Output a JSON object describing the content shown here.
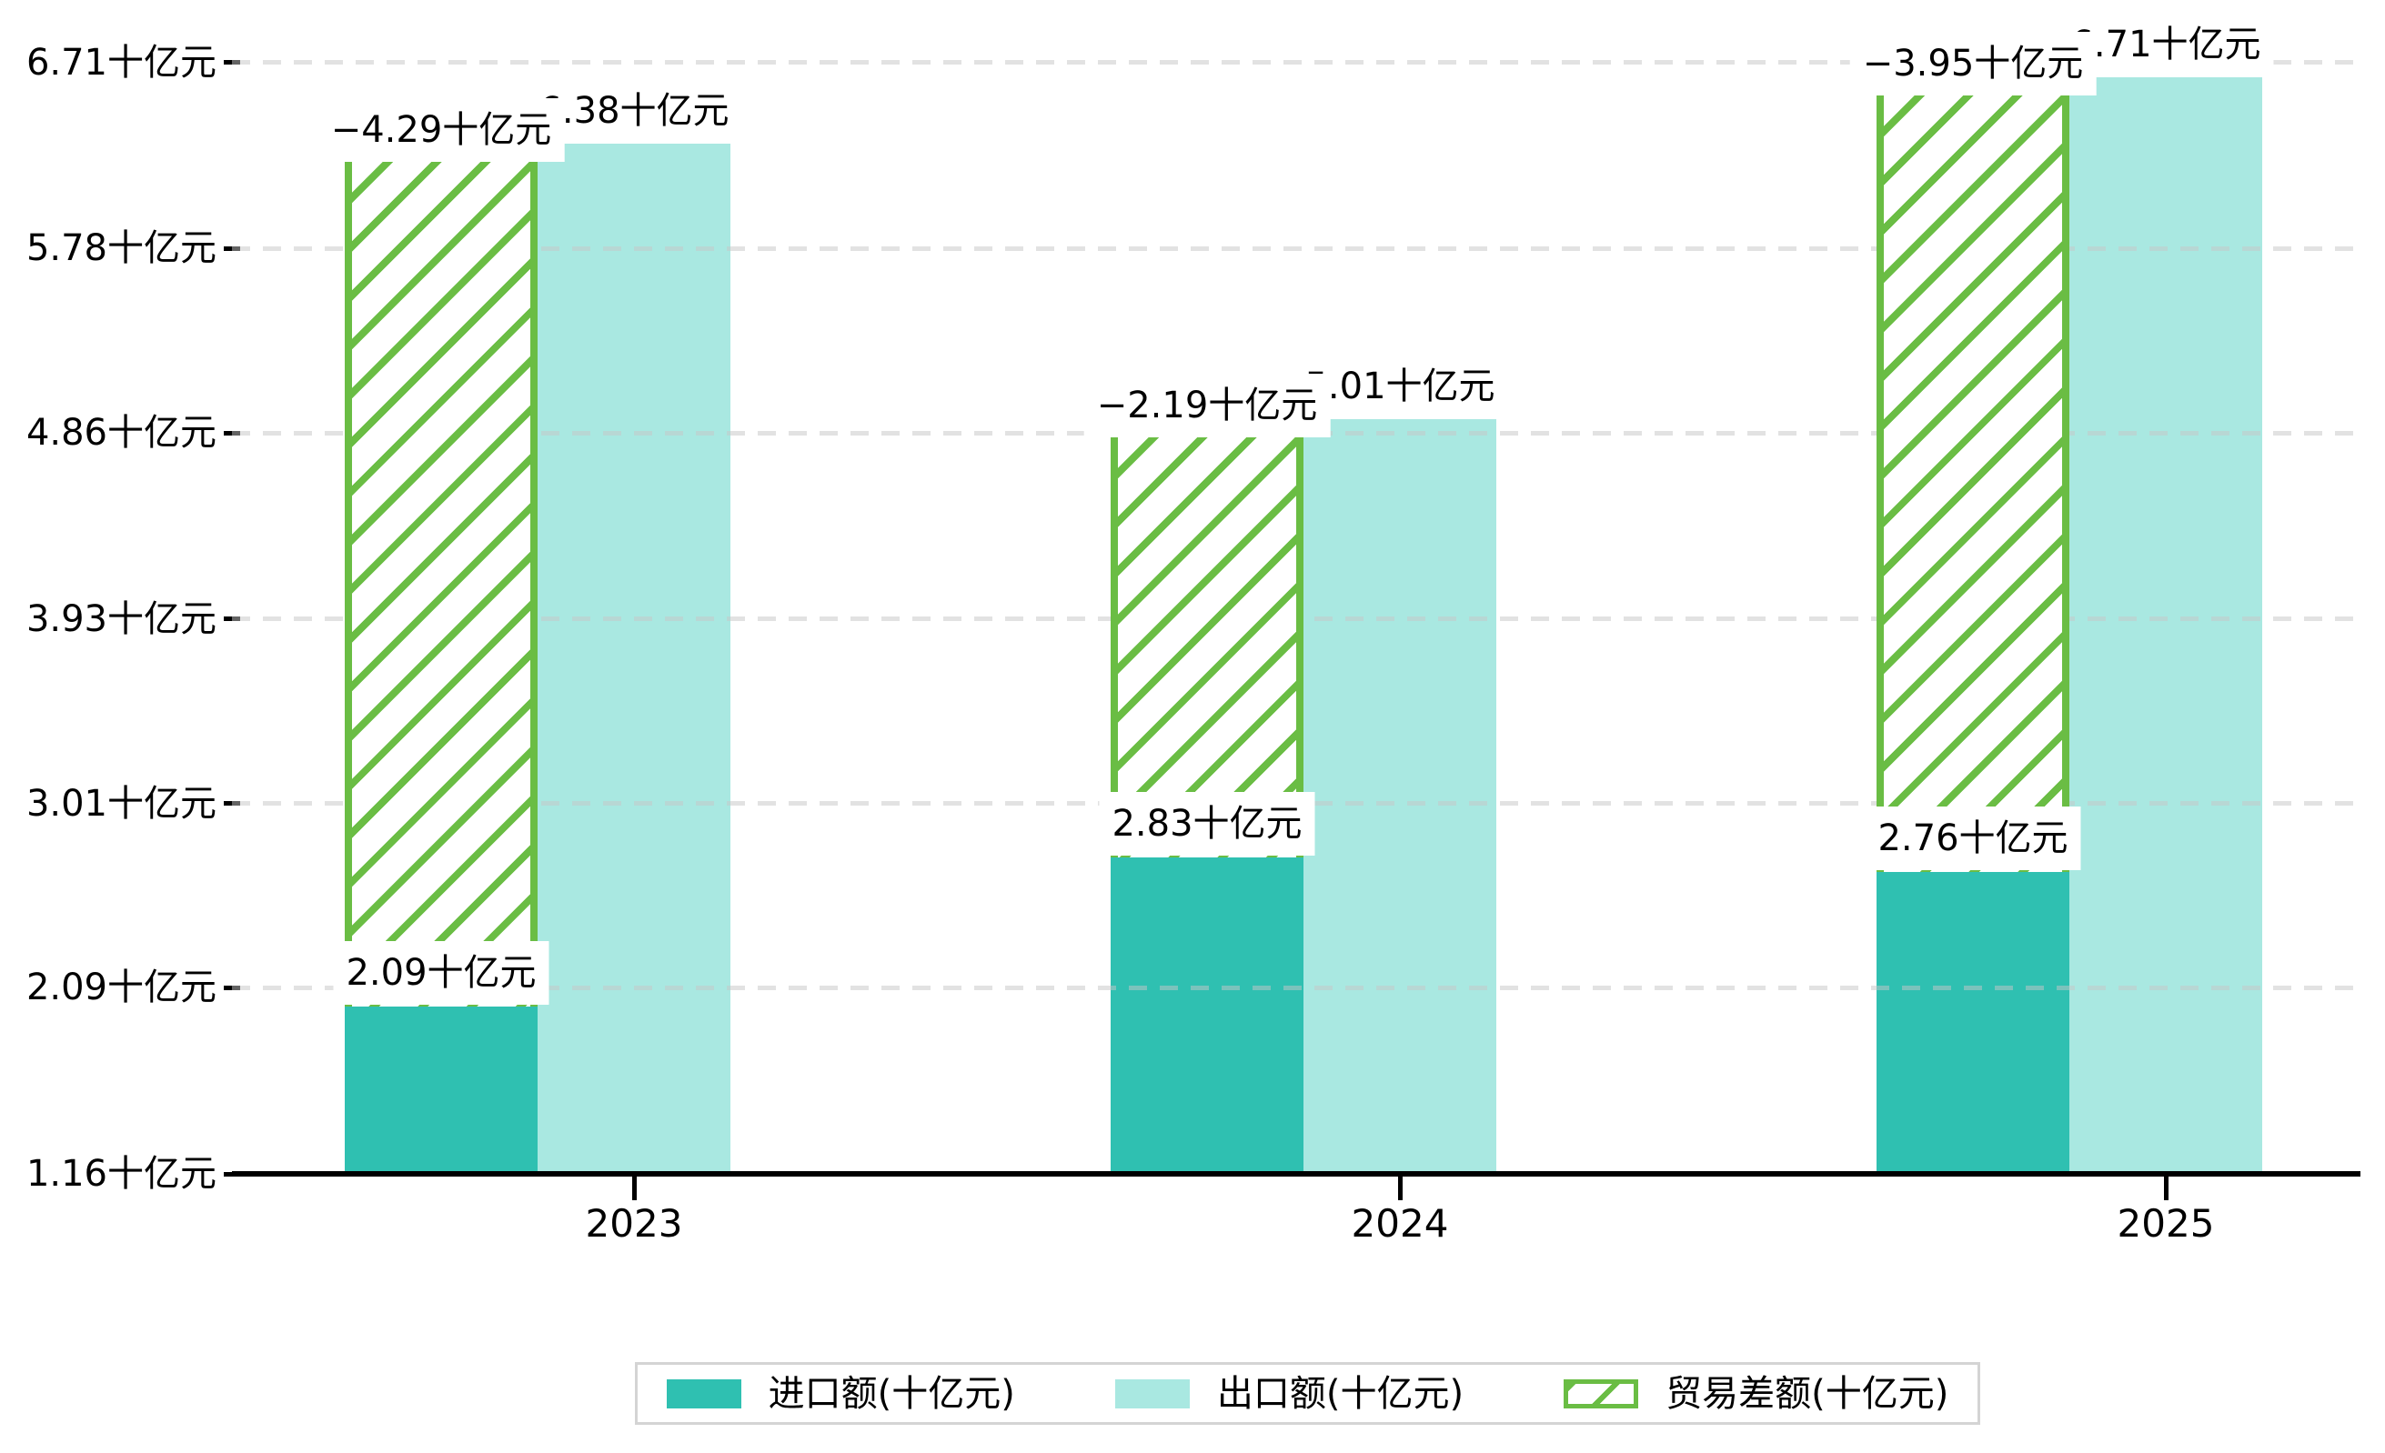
{
  "chart_data": {
    "type": "bar",
    "title": "",
    "unit": "十亿元",
    "categories": [
      "2023",
      "2024",
      "2025"
    ],
    "series": [
      {
        "key": "imports",
        "name": "进口额(十亿元)",
        "values": [
          2.09,
          2.83,
          2.76
        ],
        "labels": [
          "2.09十亿元",
          "2.83十亿元",
          "2.76十亿元"
        ],
        "color": "#2fc0b1",
        "style": "solid"
      },
      {
        "key": "exports",
        "name": "出口额(十亿元)",
        "values": [
          6.38,
          5.01,
          6.71
        ],
        "labels": [
          "6.38十亿元",
          "5.01十亿元",
          "6.71十亿元"
        ],
        "color": "#a9e8e1",
        "style": "solid"
      },
      {
        "key": "balance",
        "name": "贸易差额(十亿元)",
        "values": [
          -4.29,
          -2.19,
          -3.95
        ],
        "labels": [
          "−4.29十亿元",
          "−2.19十亿元",
          "−3.95十亿元"
        ],
        "color": "#6abd44",
        "style": "hatched",
        "note": "rendered as hatched span between import top and export top"
      }
    ],
    "y_ticks": [
      {
        "value": 6.71,
        "label": "6.71十亿元"
      },
      {
        "value": 5.78,
        "label": "5.78十亿元"
      },
      {
        "value": 4.86,
        "label": "4.86十亿元"
      },
      {
        "value": 3.93,
        "label": "3.93十亿元"
      },
      {
        "value": 3.01,
        "label": "3.01十亿元"
      },
      {
        "value": 2.09,
        "label": "2.09十亿元"
      },
      {
        "value": 1.16,
        "label": "1.16十亿元"
      }
    ],
    "ylim": [
      1.16,
      6.71
    ],
    "xlabel": "",
    "ylabel": "",
    "grid": "horizontal-dashed",
    "legend_position": "bottom-center"
  },
  "colors": {
    "import_bar": "#2fc0b1",
    "export_bar": "#a9e8e1",
    "hatch_green": "#6abd44",
    "axis": "#000000",
    "gridline": "#e8e8e8",
    "legend_border": "#d4d4d4",
    "label_bg": "#ffffff",
    "text": "#000000",
    "background": "#ffffff"
  }
}
